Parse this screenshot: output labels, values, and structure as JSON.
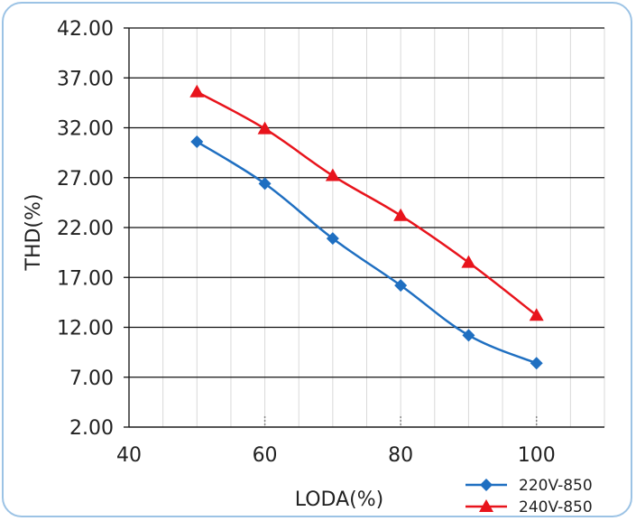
{
  "chart_data": {
    "type": "line",
    "title": "",
    "xlabel": "LODA(%)",
    "ylabel": "THD(%)",
    "xlim": [
      40,
      110
    ],
    "ylim": [
      2.0,
      42.0
    ],
    "x_ticks": [
      40,
      60,
      80,
      100
    ],
    "x_tick_labels": [
      "40",
      "60",
      "80",
      "100"
    ],
    "y_ticks": [
      2.0,
      7.0,
      12.0,
      17.0,
      22.0,
      27.0,
      32.0,
      37.0,
      42.0
    ],
    "y_tick_labels": [
      "2.00",
      "7.00",
      "12.00",
      "17.00",
      "22.00",
      "27.00",
      "32.00",
      "37.00",
      "42.00"
    ],
    "grid": "horizontal major, vertical minor every 5",
    "legend_position": "bottom-right",
    "series": [
      {
        "name": "220V-850",
        "color": "#1f6fc1",
        "marker": "diamond",
        "x": [
          50,
          60,
          70,
          80,
          90,
          100
        ],
        "y": [
          30.6,
          26.4,
          20.9,
          16.2,
          11.2,
          8.4
        ]
      },
      {
        "name": "240V-850",
        "color": "#e8141c",
        "marker": "triangle",
        "x": [
          50,
          60,
          70,
          80,
          90,
          100
        ],
        "y": [
          35.6,
          31.9,
          27.2,
          23.2,
          18.5,
          13.2
        ]
      }
    ]
  }
}
